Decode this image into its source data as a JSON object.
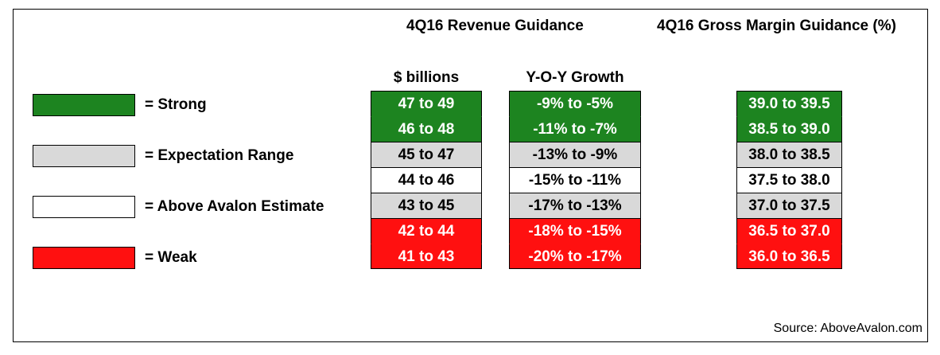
{
  "colors": {
    "strong": "#1d8420",
    "expectation": "#d9d9d9",
    "above_avalon": "#ffffff",
    "weak": "#ff1010"
  },
  "headers": {
    "revenue": "4Q16 Revenue Guidance",
    "gross_margin": "4Q16 Gross Margin Guidance (%)"
  },
  "subheaders": {
    "billions": "$ billions",
    "yoy": "Y-O-Y Growth"
  },
  "legend": [
    {
      "key": "strong",
      "label": "= Strong"
    },
    {
      "key": "expectation",
      "label": "= Expectation Range"
    },
    {
      "key": "above_avalon",
      "label": "= Above Avalon Estimate"
    },
    {
      "key": "weak",
      "label": "= Weak"
    }
  ],
  "chart_data": {
    "type": "table",
    "columns": [
      "$ billions",
      "Y-O-Y Growth",
      "4Q16 Gross Margin Guidance (%)"
    ],
    "rows": [
      {
        "category": "strong",
        "revenue": "47 to 49",
        "yoy": "-9% to -5%",
        "margin": "39.0 to 39.5"
      },
      {
        "category": "strong",
        "revenue": "46 to 48",
        "yoy": "-11% to -7%",
        "margin": "38.5 to 39.0"
      },
      {
        "category": "expectation",
        "revenue": "45 to 47",
        "yoy": "-13% to -9%",
        "margin": "38.0 to 38.5"
      },
      {
        "category": "above_avalon",
        "revenue": "44 to 46",
        "yoy": "-15% to -11%",
        "margin": "37.5 to 38.0"
      },
      {
        "category": "expectation",
        "revenue": "43 to 45",
        "yoy": "-17% to -13%",
        "margin": "37.0 to 37.5"
      },
      {
        "category": "weak",
        "revenue": "42 to 44",
        "yoy": "-18% to -15%",
        "margin": "36.5 to 37.0"
      },
      {
        "category": "weak",
        "revenue": "41 to 43",
        "yoy": "-20% to -17%",
        "margin": "36.0 to 36.5"
      }
    ]
  },
  "source": "Source: AboveAvalon.com"
}
